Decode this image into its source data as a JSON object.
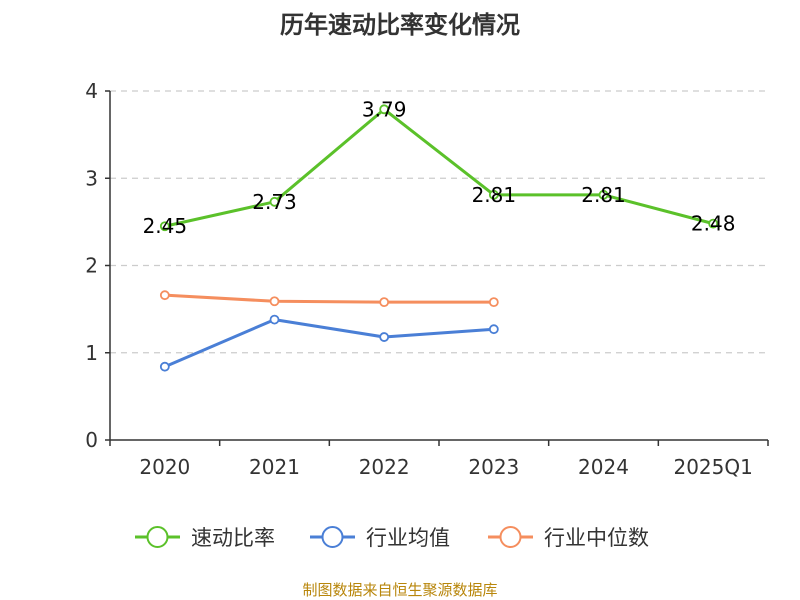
{
  "chart_data": {
    "type": "line",
    "title": "历年速动比率变化情况",
    "categories": [
      "2020",
      "2021",
      "2022",
      "2023",
      "2024",
      "2025Q1"
    ],
    "ylim": [
      0,
      4
    ],
    "yticks": [
      "0",
      "1",
      "2",
      "3",
      "4"
    ],
    "grid": true,
    "legend_position": "bottom",
    "series": [
      {
        "name": "速动比率",
        "color": "#5bc12a",
        "values": [
          2.45,
          2.73,
          3.79,
          2.81,
          2.81,
          2.48
        ],
        "labels": [
          "2.45",
          "2.73",
          "3.79",
          "2.81",
          "2.81",
          "2.48"
        ]
      },
      {
        "name": "行业均值",
        "color": "#4a7fd6",
        "values": [
          0.84,
          1.38,
          1.18,
          1.27,
          null,
          null
        ]
      },
      {
        "name": "行业中位数",
        "color": "#f58e5e",
        "values": [
          1.66,
          1.59,
          1.58,
          1.58,
          null,
          null
        ]
      }
    ],
    "source": "制图数据来自恒生聚源数据库"
  }
}
